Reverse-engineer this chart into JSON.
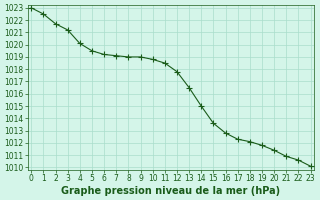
{
  "x": [
    0,
    1,
    2,
    3,
    4,
    5,
    6,
    7,
    8,
    9,
    10,
    11,
    12,
    13,
    14,
    15,
    16,
    17,
    18,
    19,
    20,
    21,
    22,
    23
  ],
  "y": [
    1023.0,
    1022.5,
    1021.7,
    1021.2,
    1020.1,
    1019.5,
    1019.2,
    1019.1,
    1019.0,
    1019.0,
    1018.8,
    1018.5,
    1017.8,
    1016.5,
    1015.0,
    1013.6,
    1012.8,
    1012.3,
    1012.1,
    1011.8,
    1011.4,
    1010.9,
    1010.6,
    1010.1
  ],
  "ylim": [
    1010,
    1023
  ],
  "xlim": [
    0,
    23
  ],
  "yticks": [
    1010,
    1011,
    1012,
    1013,
    1014,
    1015,
    1016,
    1017,
    1018,
    1019,
    1020,
    1021,
    1022,
    1023
  ],
  "xticks": [
    0,
    1,
    2,
    3,
    4,
    5,
    6,
    7,
    8,
    9,
    10,
    11,
    12,
    13,
    14,
    15,
    16,
    17,
    18,
    19,
    20,
    21,
    22,
    23
  ],
  "line_color": "#1a5c1a",
  "marker": "+",
  "marker_size": 4,
  "bg_color": "#d4f5e9",
  "grid_color": "#aaddcc",
  "xlabel": "Graphe pression niveau de la mer (hPa)",
  "xlabel_fontsize": 7,
  "tick_fontsize": 5.5,
  "tick_color": "#1a5c1a",
  "xlabel_color": "#1a5c1a",
  "xlabel_fontweight": "bold"
}
